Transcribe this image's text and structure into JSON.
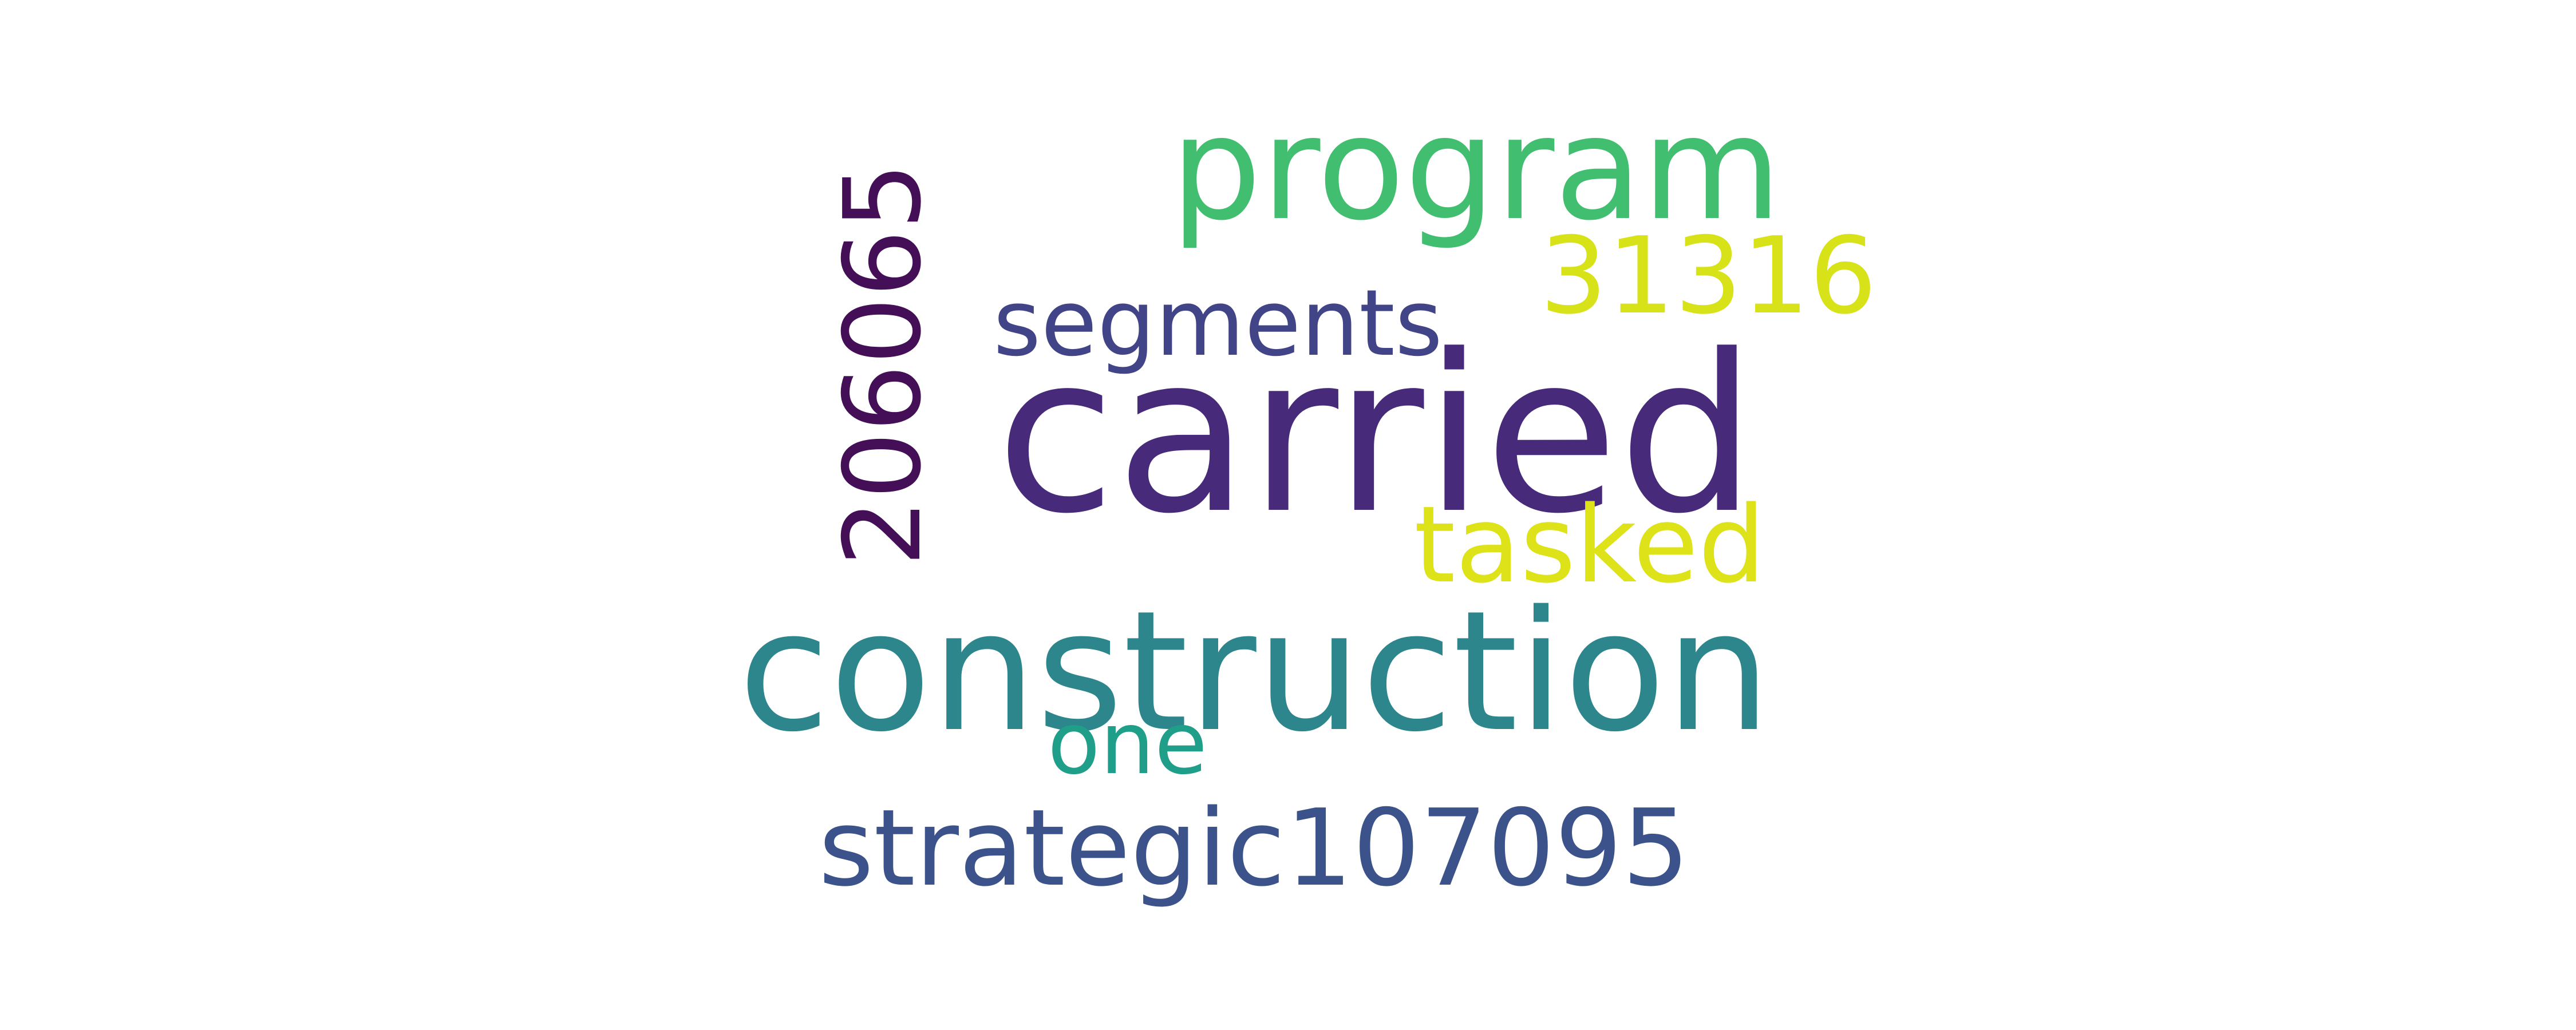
{
  "word_cloud": {
    "words": [
      {
        "id": "carried",
        "text": "carried",
        "color": "#472a7a"
      },
      {
        "id": "construction",
        "text": "construction",
        "color": "#2c868c"
      },
      {
        "id": "program",
        "text": "program",
        "color": "#41be6f"
      },
      {
        "id": "strategic",
        "text": "strategic107095",
        "color": "#3b528b"
      },
      {
        "id": "tasked",
        "text": "tasked",
        "color": "#dde318"
      },
      {
        "id": "n31316",
        "text": "31316",
        "color": "#d8e219"
      },
      {
        "id": "segments",
        "text": "segments",
        "color": "#414487"
      },
      {
        "id": "one",
        "text": "one",
        "color": "#1f9e89"
      },
      {
        "id": "n206065",
        "text": "206065",
        "color": "#440f56"
      }
    ]
  }
}
